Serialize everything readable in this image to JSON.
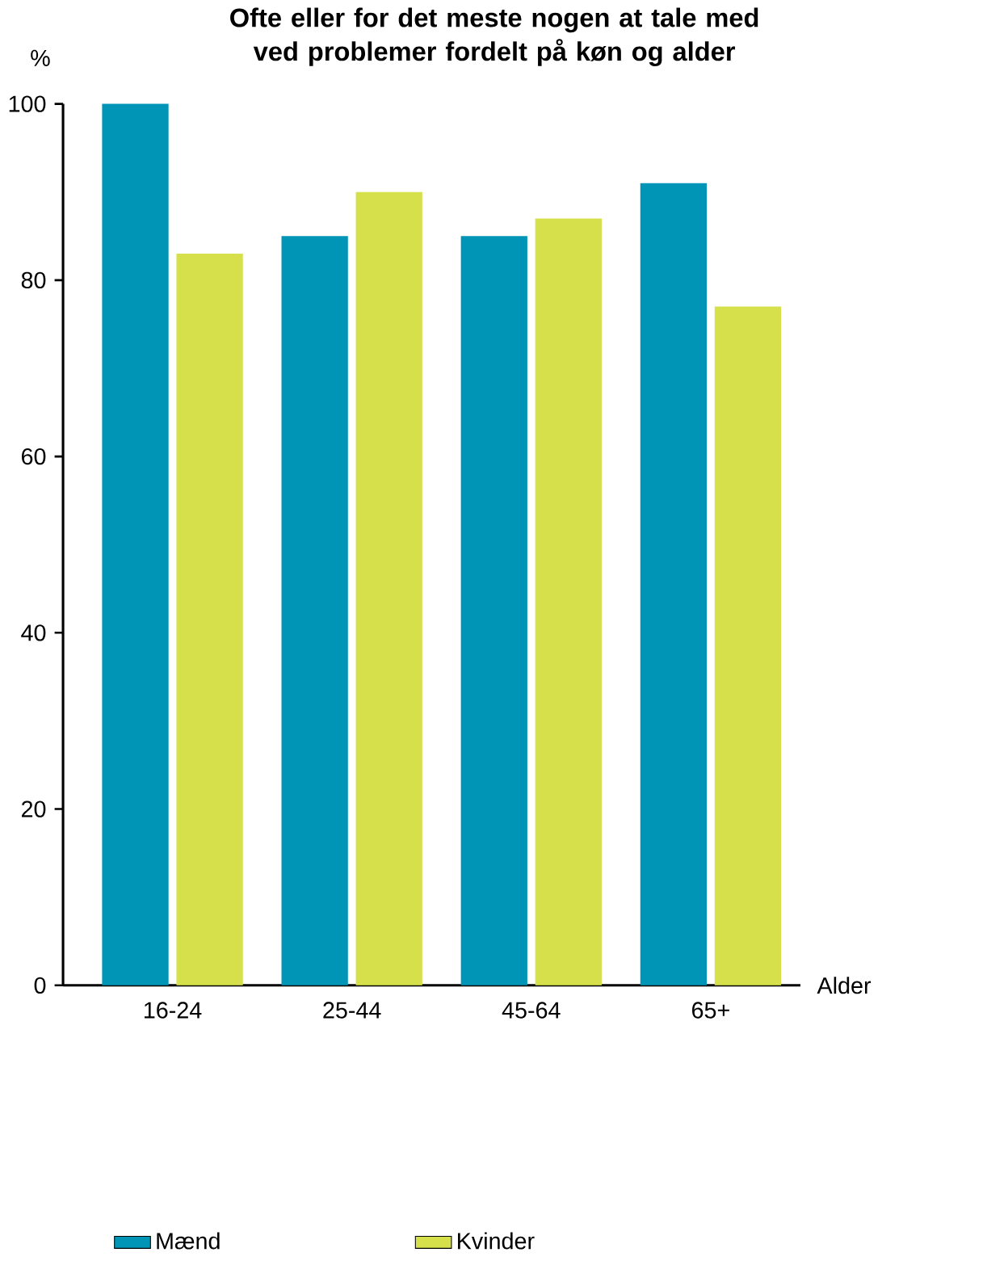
{
  "chart_data": {
    "type": "bar",
    "title": "Ofte eller for det meste nogen at tale med ved problemer fordelt på køn og alder",
    "xlabel": "Alder",
    "ylabel": "%",
    "categories": [
      "16-24",
      "25-44",
      "45-64",
      "65+"
    ],
    "series": [
      {
        "name": "Mænd",
        "color": "#0095b6",
        "values": [
          100,
          85,
          85,
          91
        ]
      },
      {
        "name": "Kvinder",
        "color": "#d5e04a",
        "values": [
          83,
          90,
          87,
          77
        ]
      }
    ],
    "ylim": [
      0,
      100
    ],
    "yticks": [
      0,
      20,
      40,
      60,
      80,
      100
    ],
    "legend": "bottom"
  }
}
